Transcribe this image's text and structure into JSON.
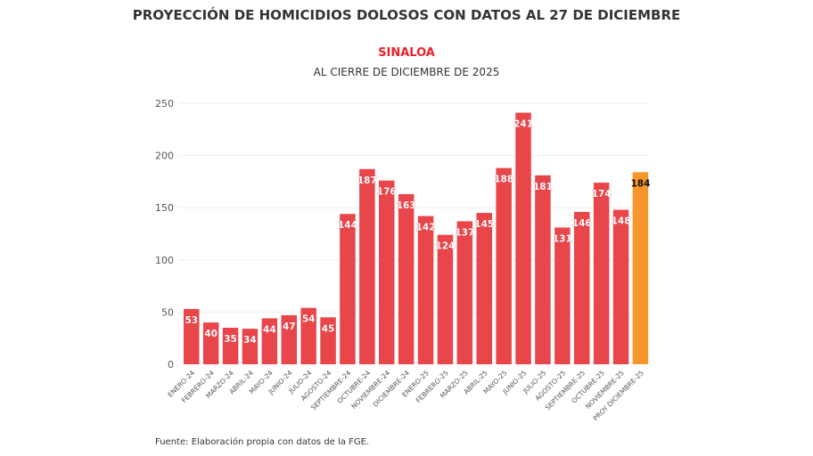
{
  "chart_data": {
    "type": "bar",
    "title": "PROYECCIÓN DE HOMICIDIOS DOLOSOS CON DATOS AL 27 DE DICIEMBRE",
    "subtitle": "SINALOA",
    "subtitle2": "AL CIERRE DE DICIEMBRE DE 2025",
    "source": "Fuente: Elaboración propia con datos de la FGE.",
    "categories": [
      "ENERO-24",
      "FEBRERO-24",
      "MARZO-24",
      "ABRIL-24",
      "MAYO-24",
      "JUNIO-24",
      "JULIO-24",
      "AGOSTO-24",
      "SEPTIEMBRE-24",
      "OCTUBRE-24",
      "NOVIEMBRE-24",
      "DICIEMBRE-24",
      "ENERO-25",
      "FEBRERO-25",
      "MARZO-25",
      "ABRIL-25",
      "MAYO-25",
      "JUNIO-25",
      "JULIO-25",
      "AGOSTO-25",
      "SEPTIEMBRE-25",
      "OCTUBRE-25",
      "NOVIEMBRE-25",
      "PROY DICIEMBRE-25"
    ],
    "values": [
      53,
      40,
      35,
      34,
      44,
      47,
      54,
      45,
      144,
      187,
      176,
      163,
      142,
      124,
      137,
      145,
      188,
      241,
      181,
      131,
      146,
      174,
      148,
      184
    ],
    "ylim": [
      0,
      250
    ],
    "yticks": [
      0,
      50,
      100,
      150,
      200,
      250
    ],
    "grid": true,
    "colors": {
      "actual": "#e8464a",
      "projection": "#f7962a"
    }
  }
}
